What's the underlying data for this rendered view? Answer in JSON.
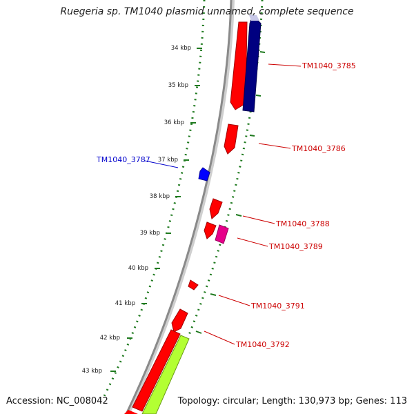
{
  "title": "Ruegeria sp. TM1040 plasmid unnamed, complete sequence",
  "accession": "Accession: NC_008042",
  "summary": "Topology: circular; Length: 130,973 bp; Genes: 113",
  "colors": {
    "backbone": "#8c8c8c",
    "gc_ticks": "#1f7a1f",
    "forward_gene": "#ff0000",
    "reverse_gene": "#000080",
    "rna": "#0000ff",
    "other": "#e6008a",
    "region": "#b3ff33",
    "label_red": "#cc0000",
    "label_blue": "#0000cc"
  },
  "scale_ticks": [
    "34 kbp",
    "35 kbp",
    "36 kbp",
    "37 kbp",
    "38 kbp",
    "39 kbp",
    "40 kbp",
    "41 kbp",
    "42 kbp",
    "43 kbp"
  ],
  "features": [
    {
      "label": "TM1040_3785",
      "strand": "forward",
      "color": "red"
    },
    {
      "label": "TM1040_3786",
      "strand": "forward",
      "color": "red"
    },
    {
      "label": "TM1040_3787",
      "strand": "reverse",
      "color": "blue"
    },
    {
      "label": "TM1040_3788",
      "strand": "forward",
      "color": "red"
    },
    {
      "label": "TM1040_3789",
      "strand": "forward",
      "color": "magenta"
    },
    {
      "label": "TM1040_3791",
      "strand": "forward",
      "color": "red"
    },
    {
      "label": "TM1040_3792",
      "strand": "forward",
      "color": "red"
    }
  ]
}
